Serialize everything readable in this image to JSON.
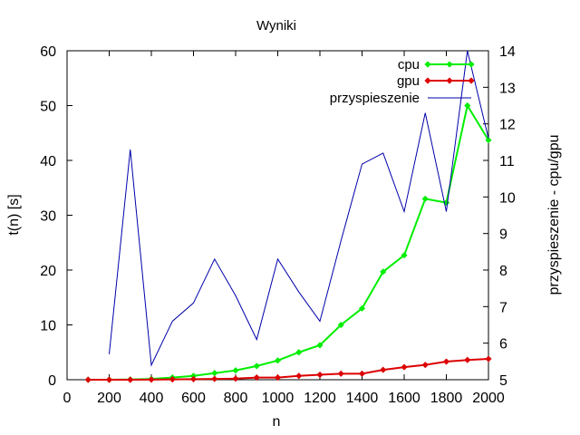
{
  "chart_data": {
    "type": "line",
    "title": "Wyniki",
    "xlabel": "n",
    "ylabel": "t(n) [s]",
    "y2label": "przyspieszenie - cpu/gpu",
    "xlim": [
      0,
      2000
    ],
    "ylim": [
      0,
      60
    ],
    "y2lim": [
      5,
      14
    ],
    "x_ticks": [
      0,
      200,
      400,
      600,
      800,
      1000,
      1200,
      1400,
      1600,
      1800,
      2000
    ],
    "y_ticks": [
      0,
      10,
      20,
      30,
      40,
      50,
      60
    ],
    "y2_ticks": [
      5,
      6,
      7,
      8,
      9,
      10,
      11,
      12,
      13,
      14
    ],
    "grid": false,
    "legend_position": "top-right",
    "series": [
      {
        "name": "cpu",
        "axis": "y1",
        "color": "#00ee00",
        "marker": "diamond",
        "x": [
          100,
          200,
          300,
          400,
          500,
          600,
          700,
          800,
          900,
          1000,
          1100,
          1200,
          1300,
          1400,
          1500,
          1600,
          1700,
          1800,
          1900,
          2000
        ],
        "y": [
          0.0,
          0.01,
          0.05,
          0.15,
          0.4,
          0.7,
          1.2,
          1.7,
          2.5,
          3.5,
          5.0,
          6.3,
          10.0,
          13.0,
          19.7,
          22.7,
          33.0,
          32.3,
          50.0,
          43.7
        ]
      },
      {
        "name": "gpu",
        "axis": "y1",
        "color": "#dd0000",
        "marker": "diamond",
        "x": [
          100,
          200,
          300,
          400,
          500,
          600,
          700,
          800,
          900,
          1000,
          1100,
          1200,
          1300,
          1400,
          1500,
          1600,
          1700,
          1800,
          1900,
          2000
        ],
        "y": [
          0.0,
          0.0,
          0.0,
          0.03,
          0.06,
          0.1,
          0.15,
          0.2,
          0.4,
          0.4,
          0.7,
          0.9,
          1.1,
          1.1,
          1.8,
          2.3,
          2.7,
          3.3,
          3.6,
          3.8
        ]
      },
      {
        "name": "przyspieszenie",
        "axis": "y2",
        "color": "#0000aa",
        "marker": "none",
        "x": [
          200,
          300,
          400,
          500,
          600,
          700,
          800,
          900,
          1000,
          1100,
          1200,
          1300,
          1400,
          1500,
          1600,
          1700,
          1800,
          1900,
          2000
        ],
        "y": [
          5.7,
          11.3,
          5.4,
          6.6,
          7.1,
          8.3,
          7.3,
          6.1,
          8.3,
          7.4,
          6.6,
          8.8,
          10.9,
          11.2,
          9.6,
          12.3,
          9.6,
          14.0,
          11.6
        ]
      }
    ]
  }
}
